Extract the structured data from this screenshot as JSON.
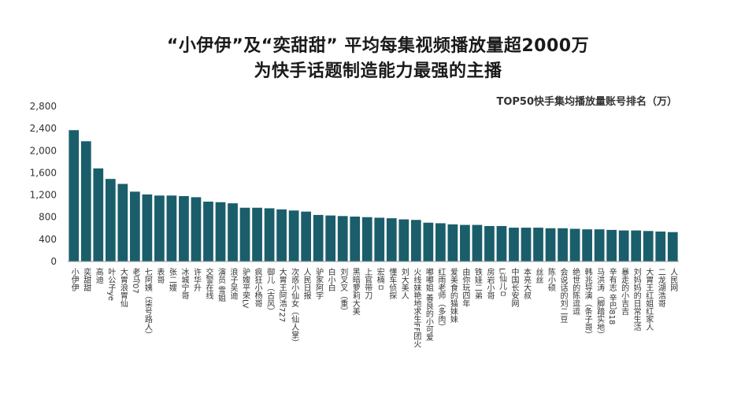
{
  "header": {
    "title_line1": "“小伊伊”及“奕甜甜” 平均每集视频播放量超2000万",
    "title_line2": "为快手话题制造能力最强的主播",
    "subtitle": "TOP50快手集均播放量账号排名（万）"
  },
  "colors": {
    "bar": "#1b5e6b",
    "axis": "#999999"
  },
  "chart_data": {
    "type": "bar",
    "title": "TOP50快手集均播放量账号排名（万）",
    "ylim": [
      0,
      2800
    ],
    "yticks": [
      0,
      400,
      800,
      1200,
      1600,
      2000,
      2400,
      2800
    ],
    "ytick_labels": [
      "0",
      "400",
      "800",
      "1,200",
      "1,600",
      "2,000",
      "2,400",
      "2,800"
    ],
    "categories": [
      "小伊伊",
      "奕甜甜",
      "高迪",
      "叶公子ye",
      "大胃浪胃仙",
      "老马07",
      "七阿姨（柒号路人）",
      "表哥",
      "张二嫂",
      "冰城宁哥",
      "许华升",
      "交警在线",
      "演员 雪姐",
      "浪子吴迪",
      "驴嫂平荣LV",
      "疯狂小杨哥",
      "御儿（古风）",
      "大胃王阿浩727",
      "次惑小仙女（仙人掌）",
      "人民日报",
      "驴家阿宇",
      "白小白",
      "刘叉叉（重）",
      "黑暗萝莉大美",
      "上官带刀",
      "宏楠ㅁ",
      "懂车侦探",
      "刘大美人",
      "火线妹艳地求生FF团火",
      "嘟嘟姐 善良的小可爱",
      "红雨老师（多肉）",
      "爱美食的猫妹妹",
      "由你玩四年",
      "铁娃二弟",
      "房岩小哥",
      "Li仙儿ㅁ",
      "中国长安网",
      "本亮大叔",
      "丝丝",
      "陈小硕",
      "会说话的刘二豆",
      "绝世的陈逗逗",
      "韩兆导演（条子哥）",
      "马洪涛（脚踏实地）",
      "辛有志 辛巴818",
      "暴走的小吉吉",
      "刘妈妈的日常生活",
      "大胃王红姐红家人",
      "二龙湖浩哥",
      "人民网"
    ],
    "values": [
      2370,
      2170,
      1680,
      1490,
      1400,
      1260,
      1210,
      1190,
      1190,
      1180,
      1160,
      1080,
      1070,
      1050,
      970,
      970,
      960,
      940,
      920,
      900,
      840,
      830,
      820,
      810,
      800,
      790,
      780,
      760,
      750,
      700,
      690,
      670,
      660,
      660,
      640,
      640,
      610,
      610,
      610,
      600,
      600,
      590,
      580,
      580,
      570,
      560,
      560,
      550,
      540,
      530
    ]
  }
}
